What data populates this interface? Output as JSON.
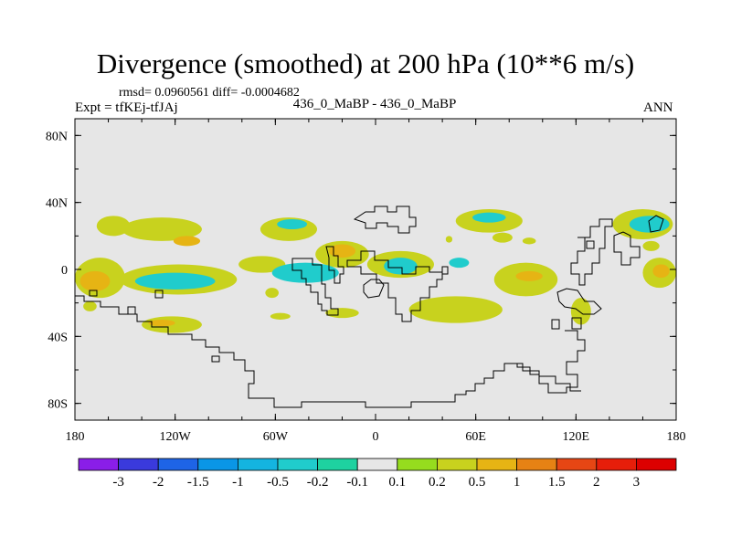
{
  "header": {
    "title": "Divergence (smoothed) at 200 hPa (10**6 m/s)",
    "stats": "rmsd= 0.0960561 diff= -0.0004682",
    "expt": "Expt = tfKEj-tfJAj",
    "case": "436_0_MaBP - 436_0_MaBP",
    "season": "ANN"
  },
  "chart_data": {
    "type": "heatmap",
    "title": "Divergence (smoothed) at 200 hPa (10**6 m/s)",
    "xlim": [
      -180,
      180
    ],
    "ylim": [
      -90,
      90
    ],
    "x_ticks": [
      {
        "value": -180,
        "label": "180"
      },
      {
        "value": -120,
        "label": "120W"
      },
      {
        "value": -60,
        "label": "60W"
      },
      {
        "value": 0,
        "label": "0"
      },
      {
        "value": 60,
        "label": "60E"
      },
      {
        "value": 120,
        "label": "120E"
      },
      {
        "value": 180,
        "label": "180"
      }
    ],
    "y_ticks": [
      {
        "value": 80,
        "label": "80N"
      },
      {
        "value": 40,
        "label": "40N"
      },
      {
        "value": 0,
        "label": "0"
      },
      {
        "value": -40,
        "label": "40S"
      },
      {
        "value": -80,
        "label": "80S"
      }
    ],
    "colorbar": {
      "labels": [
        "-3",
        "-2",
        "-1.5",
        "-1",
        "-0.5",
        "-0.2",
        "-0.1",
        "0.1",
        "0.2",
        "0.5",
        "1",
        "1.5",
        "2",
        "3"
      ],
      "colors": [
        "#8a1ee8",
        "#3a3adc",
        "#1e64e6",
        "#0a96e6",
        "#14b4e0",
        "#20cccc",
        "#1ed2a0",
        "#e6e6e6",
        "#96dc1e",
        "#c8d21e",
        "#e6b414",
        "#e68214",
        "#e64614",
        "#e61e0a",
        "#dc0000"
      ]
    },
    "background_color": "#e6e6e6",
    "regions": [
      {
        "lon": -157,
        "lat": 26,
        "rx": 10,
        "ry": 6,
        "level": "0.2"
      },
      {
        "lon": -128,
        "lat": 24,
        "rx": 24,
        "ry": 7,
        "level": "0.2"
      },
      {
        "lon": -113,
        "lat": 17,
        "rx": 8,
        "ry": 3,
        "level": "0.5"
      },
      {
        "lon": -165,
        "lat": -5,
        "rx": 15,
        "ry": 12,
        "level": "0.2"
      },
      {
        "lon": -168,
        "lat": -7,
        "rx": 9,
        "ry": 6,
        "level": "0.5"
      },
      {
        "lon": -118,
        "lat": -6,
        "rx": 35,
        "ry": 9,
        "level": "0.2"
      },
      {
        "lon": -120,
        "lat": -7,
        "rx": 24,
        "ry": 5,
        "level": "-0.2"
      },
      {
        "lon": -122,
        "lat": -33,
        "rx": 18,
        "ry": 5,
        "level": "0.2"
      },
      {
        "lon": -128,
        "lat": -32,
        "rx": 8,
        "ry": 2,
        "level": "0.5"
      },
      {
        "lon": -171,
        "lat": -22,
        "rx": 4,
        "ry": 3,
        "level": "0.2"
      },
      {
        "lon": -52,
        "lat": 24,
        "rx": 17,
        "ry": 7,
        "level": "0.2"
      },
      {
        "lon": -50,
        "lat": 27,
        "rx": 9,
        "ry": 3,
        "level": "-0.2"
      },
      {
        "lon": -68,
        "lat": 3,
        "rx": 14,
        "ry": 5,
        "level": "0.2"
      },
      {
        "lon": -20,
        "lat": 9,
        "rx": 16,
        "ry": 8,
        "level": "0.2"
      },
      {
        "lon": -20,
        "lat": 11,
        "rx": 8,
        "ry": 4,
        "level": "0.5"
      },
      {
        "lon": -42,
        "lat": -2,
        "rx": 20,
        "ry": 6,
        "level": "-0.2"
      },
      {
        "lon": -20,
        "lat": -26,
        "rx": 10,
        "ry": 3,
        "level": "0.2"
      },
      {
        "lon": -57,
        "lat": -28,
        "rx": 6,
        "ry": 2,
        "level": "0.2"
      },
      {
        "lon": -62,
        "lat": -14,
        "rx": 4,
        "ry": 3,
        "level": "0.2"
      },
      {
        "lon": 15,
        "lat": 3,
        "rx": 20,
        "ry": 8,
        "level": "0.2"
      },
      {
        "lon": 15,
        "lat": 2,
        "rx": 10,
        "ry": 5,
        "level": "-0.2"
      },
      {
        "lon": 48,
        "lat": -24,
        "rx": 28,
        "ry": 8,
        "level": "0.2"
      },
      {
        "lon": 50,
        "lat": 4,
        "rx": 6,
        "ry": 3,
        "level": "-0.2"
      },
      {
        "lon": 68,
        "lat": 29,
        "rx": 20,
        "ry": 7,
        "level": "0.2"
      },
      {
        "lon": 68,
        "lat": 31,
        "rx": 10,
        "ry": 3,
        "level": "-0.2"
      },
      {
        "lon": 90,
        "lat": -6,
        "rx": 19,
        "ry": 10,
        "level": "0.2"
      },
      {
        "lon": 92,
        "lat": -4,
        "rx": 8,
        "ry": 3,
        "level": "0.5"
      },
      {
        "lon": 76,
        "lat": 19,
        "rx": 6,
        "ry": 3,
        "level": "0.2"
      },
      {
        "lon": 92,
        "lat": 17,
        "rx": 4,
        "ry": 2,
        "level": "0.2"
      },
      {
        "lon": 44,
        "lat": 18,
        "rx": 2,
        "ry": 2,
        "level": "0.2"
      },
      {
        "lon": 123,
        "lat": -25,
        "rx": 6,
        "ry": 8,
        "level": "0.2"
      },
      {
        "lon": 160,
        "lat": 27,
        "rx": 18,
        "ry": 9,
        "level": "0.2"
      },
      {
        "lon": 164,
        "lat": 27,
        "rx": 12,
        "ry": 5,
        "level": "-0.2"
      },
      {
        "lon": 170,
        "lat": -2,
        "rx": 10,
        "ry": 9,
        "level": "0.2"
      },
      {
        "lon": 171,
        "lat": -1,
        "rx": 5,
        "ry": 4,
        "level": "0.5"
      },
      {
        "lon": 165,
        "lat": 14,
        "rx": 5,
        "ry": 3,
        "level": "0.2"
      }
    ]
  }
}
